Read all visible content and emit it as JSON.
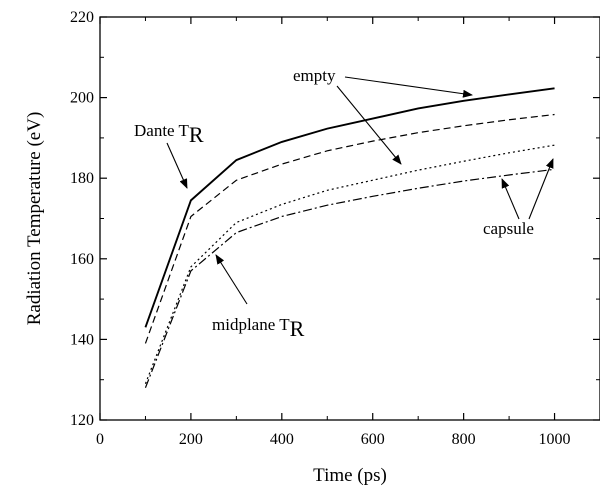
{
  "chart_data": {
    "type": "line",
    "xlabel": "Time (ps)",
    "ylabel": "Radiation Temperature (eV)",
    "xlim": [
      0,
      1100
    ],
    "ylim": [
      120,
      220
    ],
    "xticks": [
      0,
      200,
      400,
      600,
      800,
      1000
    ],
    "yticks": [
      120,
      140,
      160,
      180,
      200,
      220
    ],
    "grid": false,
    "series": [
      {
        "style": "solid",
        "x": [
          100,
          200,
          300,
          400,
          500,
          600,
          700,
          800,
          900,
          1000
        ],
        "y": [
          143,
          174.5,
          184.5,
          189,
          192.3,
          194.8,
          197.3,
          199.2,
          200.8,
          202.3
        ]
      },
      {
        "style": "dashed",
        "x": [
          100,
          200,
          300,
          400,
          500,
          600,
          700,
          800,
          900,
          1000
        ],
        "y": [
          139,
          170.5,
          179.5,
          183.5,
          186.8,
          189.2,
          191.3,
          193,
          194.5,
          195.8
        ]
      },
      {
        "style": "dotted",
        "x": [
          100,
          200,
          300,
          400,
          500,
          600,
          700,
          800,
          900,
          1000
        ],
        "y": [
          129,
          158,
          169,
          173.5,
          177,
          179.5,
          182,
          184.2,
          186.3,
          188.2
        ]
      },
      {
        "style": "dashdot",
        "x": [
          100,
          200,
          300,
          400,
          500,
          600,
          700,
          800,
          900,
          1000
        ],
        "y": [
          128,
          157,
          166.5,
          170.5,
          173.3,
          175.5,
          177.5,
          179.3,
          180.8,
          182.2
        ]
      }
    ],
    "annotations": [
      {
        "id": "dante",
        "text": "Dante T",
        "subscript": "R"
      },
      {
        "id": "empty",
        "text": "empty"
      },
      {
        "id": "capsule",
        "text": "capsule"
      },
      {
        "id": "midplane",
        "text": "midplane T",
        "subscript": "R"
      }
    ]
  }
}
